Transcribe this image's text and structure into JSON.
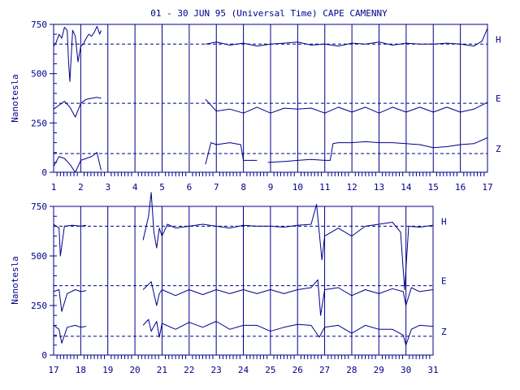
{
  "title": "01 - 30 JUN 95 (Universal Time) CAPE CAMENNY",
  "colors": {
    "ink": "#00008b",
    "background": "#ffffff"
  },
  "chart_data": [
    {
      "type": "line",
      "panel": "top",
      "xlabel": "",
      "ylabel": "Nanotesla",
      "xlim": [
        1,
        17
      ],
      "ylim": [
        0,
        750
      ],
      "y_ticks": [
        0,
        250,
        500,
        750
      ],
      "x_ticks": [
        "1",
        "2",
        "3",
        "4",
        "5",
        "6",
        "7",
        "8",
        "9",
        "10",
        "11",
        "12",
        "13",
        "14",
        "15",
        "16",
        "17"
      ],
      "grid": "vertical lines at each day",
      "reference_lines": [
        {
          "component": "H",
          "value": 650
        },
        {
          "component": "E",
          "value": 350
        },
        {
          "component": "Z",
          "value": 95
        }
      ],
      "series": [
        {
          "name": "H",
          "segments": [
            {
              "x": [
                1.0,
                1.1,
                1.2,
                1.3,
                1.4,
                1.5,
                1.55,
                1.6,
                1.7,
                1.8,
                1.9,
                2.0,
                2.1,
                2.2,
                2.3,
                2.4,
                2.5,
                2.6,
                2.7,
                2.75
              ],
              "y": [
                640,
                660,
                700,
                680,
                735,
                720,
                560,
                460,
                720,
                690,
                560,
                640,
                650,
                680,
                700,
                690,
                710,
                740,
                700,
                720
              ]
            },
            {
              "x": [
                6.6,
                7.0,
                7.5,
                8.0,
                8.5,
                9.0,
                9.5,
                10.0,
                10.5,
                11.0,
                11.5,
                12.0,
                12.5,
                13.0,
                13.5,
                14.0,
                14.5,
                15.0,
                15.5,
                16.0,
                16.5,
                16.8,
                17.0
              ],
              "y": [
                650,
                660,
                645,
                655,
                640,
                650,
                655,
                660,
                645,
                650,
                640,
                655,
                650,
                660,
                645,
                655,
                650,
                650,
                655,
                650,
                640,
                665,
                730
              ]
            }
          ]
        },
        {
          "name": "E",
          "segments": [
            {
              "x": [
                1.0,
                1.2,
                1.4,
                1.6,
                1.8,
                2.0,
                2.2,
                2.4,
                2.6,
                2.75
              ],
              "y": [
                320,
                340,
                360,
                330,
                280,
                350,
                370,
                375,
                380,
                375
              ]
            },
            {
              "x": [
                6.6,
                7.0,
                7.5,
                8.0,
                8.5,
                9.0,
                9.5,
                10.0,
                10.5,
                11.0,
                11.5,
                12.0,
                12.5,
                13.0,
                13.5,
                14.0,
                14.5,
                15.0,
                15.5,
                16.0,
                16.5,
                17.0
              ],
              "y": [
                370,
                310,
                320,
                300,
                330,
                300,
                325,
                320,
                325,
                300,
                330,
                305,
                330,
                300,
                330,
                305,
                330,
                305,
                330,
                305,
                320,
                355
              ]
            }
          ]
        },
        {
          "name": "Z",
          "segments": [
            {
              "x": [
                1.0,
                1.2,
                1.4,
                1.6,
                1.8,
                2.0,
                2.2,
                2.4,
                2.6,
                2.75
              ],
              "y": [
                30,
                80,
                70,
                40,
                0,
                60,
                70,
                80,
                100,
                10
              ]
            },
            {
              "x": [
                6.6,
                6.8,
                7.0,
                7.5,
                7.9,
                8.0,
                8.5
              ],
              "y": [
                40,
                150,
                140,
                150,
                140,
                60,
                60
              ]
            },
            {
              "x": [
                8.9,
                9.5,
                10.0,
                10.5,
                11.0,
                11.2,
                11.3,
                11.5,
                12.0,
                12.5,
                13.0,
                13.5,
                14.0,
                14.5,
                15.0,
                15.5,
                16.0,
                16.5,
                17.0
              ],
              "y": [
                50,
                55,
                60,
                65,
                60,
                60,
                145,
                150,
                150,
                155,
                150,
                150,
                145,
                140,
                125,
                130,
                140,
                145,
                175
              ]
            }
          ]
        }
      ],
      "component_labels": [
        "H",
        "E",
        "Z"
      ]
    },
    {
      "type": "line",
      "panel": "bottom",
      "xlabel": "",
      "ylabel": "Nanotesla",
      "xlim": [
        17,
        31
      ],
      "ylim": [
        0,
        750
      ],
      "y_ticks": [
        0,
        250,
        500,
        750
      ],
      "x_ticks": [
        "17",
        "18",
        "19",
        "20",
        "21",
        "22",
        "23",
        "24",
        "25",
        "26",
        "27",
        "28",
        "29",
        "30",
        "31"
      ],
      "grid": "vertical lines at each day",
      "reference_lines": [
        {
          "component": "H",
          "value": 650
        },
        {
          "component": "E",
          "value": 350
        },
        {
          "component": "Z",
          "value": 95
        }
      ],
      "series": [
        {
          "name": "H",
          "segments": [
            {
              "x": [
                17.0,
                17.2,
                17.25,
                17.4,
                17.7,
                18.0,
                18.2
              ],
              "y": [
                660,
                640,
                500,
                650,
                655,
                650,
                655
              ]
            },
            {
              "x": [
                20.3,
                20.5,
                20.6,
                20.7,
                20.8,
                20.9,
                21.0,
                21.2,
                21.5,
                22.0,
                22.5,
                23.0,
                23.5,
                24.0,
                24.5,
                25.0,
                25.5,
                26.0,
                26.5,
                26.7,
                26.8,
                26.9,
                27.0,
                27.5,
                28.0,
                28.5,
                29.0,
                29.5,
                29.8,
                29.95,
                30.1,
                30.5,
                31.0
              ],
              "y": [
                580,
                700,
                820,
                620,
                540,
                640,
                600,
                660,
                640,
                650,
                660,
                650,
                640,
                655,
                650,
                650,
                645,
                655,
                660,
                760,
                620,
                480,
                600,
                640,
                600,
                650,
                660,
                670,
                620,
                330,
                650,
                645,
                655
              ]
            }
          ]
        },
        {
          "name": "E",
          "segments": [
            {
              "x": [
                17.0,
                17.2,
                17.3,
                17.5,
                17.8,
                18.0,
                18.2
              ],
              "y": [
                320,
                330,
                220,
                310,
                330,
                320,
                325
              ]
            },
            {
              "x": [
                20.3,
                20.6,
                20.8,
                20.9,
                21.0,
                21.5,
                22.0,
                22.5,
                23.0,
                23.5,
                24.0,
                24.5,
                25.0,
                25.5,
                26.0,
                26.5,
                26.75,
                26.85,
                27.0,
                27.5,
                28.0,
                28.5,
                29.0,
                29.5,
                29.9,
                30.0,
                30.2,
                30.5,
                31.0
              ],
              "y": [
                330,
                370,
                250,
                310,
                330,
                300,
                330,
                305,
                330,
                310,
                330,
                310,
                330,
                310,
                330,
                340,
                380,
                200,
                330,
                340,
                300,
                330,
                310,
                335,
                320,
                250,
                340,
                320,
                330
              ]
            }
          ]
        },
        {
          "name": "Z",
          "segments": [
            {
              "x": [
                17.0,
                17.2,
                17.3,
                17.5,
                17.8,
                18.0,
                18.2
              ],
              "y": [
                150,
                130,
                60,
                140,
                150,
                140,
                145
              ]
            },
            {
              "x": [
                20.3,
                20.5,
                20.6,
                20.8,
                20.9,
                21.0,
                21.5,
                22.0,
                22.5,
                23.0,
                23.5,
                24.0,
                24.5,
                25.0,
                25.5,
                26.0,
                26.5,
                26.8,
                27.0,
                27.5,
                28.0,
                28.5,
                29.0,
                29.5,
                29.9,
                30.0,
                30.2,
                30.5,
                31.0
              ],
              "y": [
                150,
                180,
                120,
                170,
                90,
                160,
                130,
                165,
                140,
                170,
                130,
                150,
                150,
                120,
                140,
                155,
                150,
                90,
                140,
                150,
                110,
                150,
                130,
                130,
                100,
                50,
                130,
                150,
                145
              ]
            }
          ]
        }
      ],
      "component_labels": [
        "H",
        "E",
        "Z"
      ]
    }
  ]
}
